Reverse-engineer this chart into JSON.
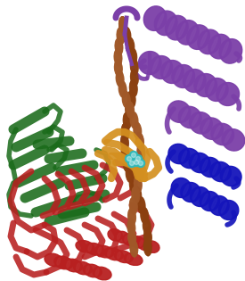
{
  "background_color": "#ffffff",
  "figure_width": 2.75,
  "figure_height": 3.15,
  "dpi": 100,
  "colors": {
    "purple": "#7B3FA8",
    "green": "#1A6B1A",
    "red": "#B82020",
    "blue": "#1515BB",
    "orange": "#D49020",
    "brown": "#8B4010",
    "brown2": "#A05828",
    "cyan": "#30B8B8",
    "white": "#ffffff"
  },
  "layout": {
    "xmin": 0,
    "xmax": 275,
    "ymin": 0,
    "ymax": 315
  }
}
